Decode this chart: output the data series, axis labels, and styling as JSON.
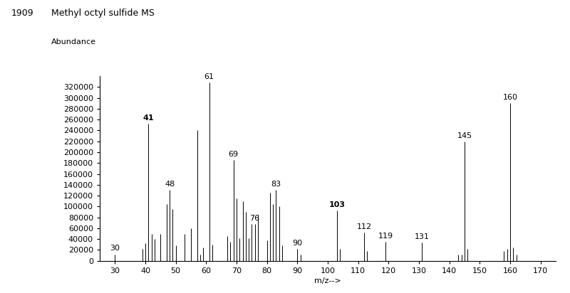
{
  "title_id": "1909",
  "title_name": "Methyl octyl sulfide MS",
  "ylabel": "Abundance",
  "xlabel": "m/z-->",
  "xlim": [
    25,
    175
  ],
  "ylim": [
    0,
    340000
  ],
  "xticks": [
    30,
    40,
    50,
    60,
    70,
    80,
    90,
    100,
    110,
    120,
    130,
    140,
    150,
    160,
    170
  ],
  "yticks": [
    0,
    20000,
    40000,
    60000,
    80000,
    100000,
    120000,
    140000,
    160000,
    180000,
    200000,
    220000,
    240000,
    260000,
    280000,
    300000,
    320000
  ],
  "peaks": [
    [
      30,
      12000
    ],
    [
      39,
      22000
    ],
    [
      40,
      32000
    ],
    [
      41,
      252000
    ],
    [
      42,
      50000
    ],
    [
      43,
      40000
    ],
    [
      45,
      50000
    ],
    [
      47,
      105000
    ],
    [
      48,
      130000
    ],
    [
      49,
      95000
    ],
    [
      50,
      28000
    ],
    [
      53,
      50000
    ],
    [
      55,
      60000
    ],
    [
      57,
      240000
    ],
    [
      58,
      12000
    ],
    [
      59,
      25000
    ],
    [
      61,
      328000
    ],
    [
      62,
      30000
    ],
    [
      67,
      45000
    ],
    [
      68,
      35000
    ],
    [
      69,
      185000
    ],
    [
      70,
      115000
    ],
    [
      71,
      42000
    ],
    [
      72,
      110000
    ],
    [
      73,
      90000
    ],
    [
      74,
      42000
    ],
    [
      75,
      68000
    ],
    [
      76,
      68000
    ],
    [
      77,
      85000
    ],
    [
      80,
      38000
    ],
    [
      81,
      125000
    ],
    [
      82,
      105000
    ],
    [
      83,
      130000
    ],
    [
      84,
      100000
    ],
    [
      85,
      28000
    ],
    [
      90,
      22000
    ],
    [
      91,
      12000
    ],
    [
      103,
      93000
    ],
    [
      104,
      22000
    ],
    [
      112,
      52000
    ],
    [
      113,
      18000
    ],
    [
      119,
      35000
    ],
    [
      131,
      33000
    ],
    [
      143,
      12000
    ],
    [
      144,
      12000
    ],
    [
      145,
      220000
    ],
    [
      146,
      22000
    ],
    [
      158,
      18000
    ],
    [
      159,
      22000
    ],
    [
      160,
      290000
    ],
    [
      161,
      25000
    ],
    [
      162,
      12000
    ]
  ],
  "labeled_peaks": [
    [
      30,
      12000,
      "30",
      "normal"
    ],
    [
      41,
      252000,
      "41",
      "bold"
    ],
    [
      48,
      130000,
      "48",
      "normal"
    ],
    [
      61,
      328000,
      "61",
      "normal"
    ],
    [
      69,
      185000,
      "69",
      "normal"
    ],
    [
      76,
      68000,
      "76",
      "normal"
    ],
    [
      83,
      130000,
      "83",
      "normal"
    ],
    [
      90,
      22000,
      "90",
      "normal"
    ],
    [
      103,
      93000,
      "103",
      "bold"
    ],
    [
      112,
      52000,
      "112",
      "normal"
    ],
    [
      119,
      35000,
      "119",
      "normal"
    ],
    [
      131,
      33000,
      "131",
      "normal"
    ],
    [
      145,
      220000,
      "145",
      "normal"
    ],
    [
      160,
      290000,
      "160",
      "normal"
    ]
  ],
  "bar_color": "#000000",
  "background_color": "#ffffff",
  "bar_linewidth": 0.7,
  "title_fontsize": 9,
  "label_fontsize": 8,
  "tick_fontsize": 8
}
